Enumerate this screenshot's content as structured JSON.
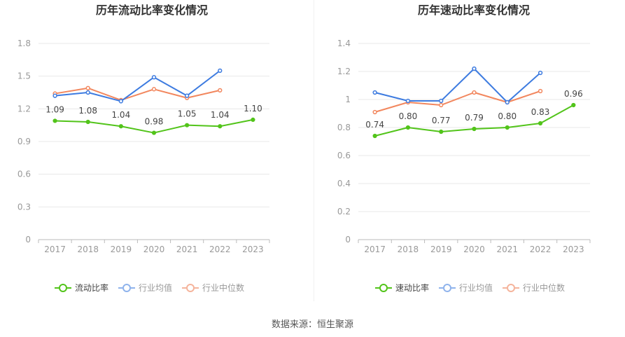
{
  "source_text": "数据来源：恒生聚源",
  "colors": {
    "series_primary": "#52c41a",
    "industry_avg": "#3d7be0",
    "industry_median": "#f2875e",
    "legend_avg": "#8fb3ec",
    "legend_median": "#f5b49c",
    "grid": "#e8e8e8",
    "axis": "#999999",
    "label": "#444444"
  },
  "chart_data": [
    {
      "type": "line",
      "title": "历年流动比率变化情况",
      "x": [
        "2017",
        "2018",
        "2019",
        "2020",
        "2021",
        "2022",
        "2023"
      ],
      "ylim": [
        0,
        1.8
      ],
      "yticks": [
        "0",
        "0.3",
        "0.6",
        "0.9",
        "1.2",
        "1.5",
        "1.8"
      ],
      "grid": true,
      "legend_position": "bottom",
      "series": [
        {
          "name": "流动比率",
          "values": [
            1.09,
            1.08,
            1.04,
            0.98,
            1.05,
            1.04,
            1.1
          ],
          "labels": [
            "1.09",
            "1.08",
            "1.04",
            "0.98",
            "1.05",
            "1.04",
            "1.10"
          ],
          "color": "#52c41a"
        },
        {
          "name": "行业均值",
          "values": [
            1.32,
            1.35,
            1.27,
            1.49,
            1.32,
            1.55,
            null
          ],
          "color": "#3d7be0"
        },
        {
          "name": "行业中位数",
          "values": [
            1.34,
            1.39,
            1.28,
            1.38,
            1.3,
            1.37,
            null
          ],
          "color": "#f2875e"
        }
      ]
    },
    {
      "type": "line",
      "title": "历年速动比率变化情况",
      "x": [
        "2017",
        "2018",
        "2019",
        "2020",
        "2021",
        "2022",
        "2023"
      ],
      "ylim": [
        0,
        1.4
      ],
      "yticks": [
        "0",
        "0.2",
        "0.4",
        "0.6",
        "0.8",
        "1",
        "1.2",
        "1.4"
      ],
      "grid": true,
      "legend_position": "bottom",
      "series": [
        {
          "name": "速动比率",
          "values": [
            0.74,
            0.8,
            0.77,
            0.79,
            0.8,
            0.83,
            0.96
          ],
          "labels": [
            "0.74",
            "0.80",
            "0.77",
            "0.79",
            "0.80",
            "0.83",
            "0.96"
          ],
          "color": "#52c41a"
        },
        {
          "name": "行业均值",
          "values": [
            1.05,
            0.99,
            0.99,
            1.22,
            0.98,
            1.19,
            null
          ],
          "color": "#3d7be0"
        },
        {
          "name": "行业中位数",
          "values": [
            0.91,
            0.98,
            0.96,
            1.05,
            0.98,
            1.06,
            null
          ],
          "color": "#f2875e"
        }
      ]
    }
  ]
}
